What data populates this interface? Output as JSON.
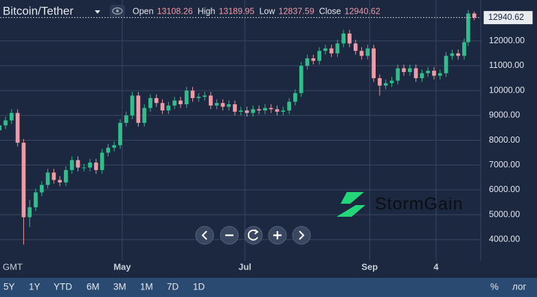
{
  "ui": {
    "symbol": "Bitcoin/Tether",
    "ohlc_labels": [
      "Open",
      "High",
      "Low",
      "Close"
    ],
    "timezone": "GMT",
    "brand": "StormGain",
    "ranges": [
      "5Y",
      "1Y",
      "YTD",
      "6M",
      "3M",
      "1M",
      "7D",
      "1D"
    ],
    "options": [
      "%",
      "лог"
    ]
  },
  "chart_data": {
    "type": "candlestick",
    "up_color": "#2fbf8c",
    "down_color": "#ef9aa6",
    "grid": true,
    "ylim": [
      3150,
      13650
    ],
    "yticks": [
      {
        "value": 4000,
        "label": "4000.00"
      },
      {
        "value": 5000,
        "label": "5000.00"
      },
      {
        "value": 6000,
        "label": "6000.00"
      },
      {
        "value": 7000,
        "label": "7000.00"
      },
      {
        "value": 8000,
        "label": "8000.00"
      },
      {
        "value": 9000,
        "label": "9000.00"
      },
      {
        "value": 10000,
        "label": "10000.00"
      },
      {
        "value": 11000,
        "label": "11000.00"
      },
      {
        "value": 12000,
        "label": "12000.00"
      }
    ],
    "xlim": [
      0.25,
      239.2
    ],
    "xticks": [
      {
        "value": 61,
        "label": "May"
      },
      {
        "value": 122,
        "label": "Jul"
      },
      {
        "value": 184,
        "label": "Sep"
      },
      {
        "value": 217,
        "label": "4"
      }
    ],
    "x": [
      0,
      3,
      6,
      9,
      12,
      15,
      18,
      21,
      24,
      27,
      30,
      33,
      36,
      39,
      42,
      45,
      48,
      51,
      54,
      57,
      60,
      63,
      66,
      69,
      72,
      75,
      78,
      81,
      84,
      87,
      90,
      93,
      96,
      99,
      102,
      105,
      108,
      111,
      114,
      117,
      120,
      123,
      126,
      129,
      132,
      135,
      138,
      141,
      144,
      147,
      150,
      153,
      156,
      159,
      162,
      165,
      168,
      171,
      174,
      177,
      180,
      183,
      186,
      189,
      192,
      195,
      198,
      201,
      204,
      207,
      210,
      213,
      216,
      219,
      222,
      225,
      228,
      231,
      233,
      236
    ],
    "open": [
      8400,
      8600,
      8800,
      9100,
      7900,
      4900,
      5300,
      5900,
      6200,
      6700,
      6400,
      6300,
      6800,
      7200,
      6900,
      6900,
      7100,
      6800,
      7500,
      7700,
      7800,
      8700,
      9000,
      9800,
      8700,
      9300,
      9700,
      9500,
      9200,
      9400,
      9600,
      9450,
      10000,
      9700,
      9750,
      9800,
      9400,
      9500,
      9350,
      9450,
      9150,
      9200,
      9100,
      9250,
      9200,
      9300,
      9250,
      9150,
      9200,
      9550,
      9900,
      11000,
      11300,
      11200,
      11600,
      11700,
      11500,
      11900,
      12300,
      11900,
      11600,
      11400,
      11700,
      10500,
      10200,
      10300,
      10400,
      10900,
      10750,
      10900,
      10500,
      10700,
      10800,
      10600,
      10700,
      11400,
      11500,
      11400,
      11950,
      13108.26
    ],
    "high": [
      8750,
      8950,
      9250,
      9250,
      8050,
      5600,
      6050,
      6350,
      6850,
      6850,
      6550,
      6950,
      7350,
      7350,
      7050,
      7250,
      7250,
      7650,
      7850,
      7950,
      8850,
      9150,
      9950,
      9950,
      9450,
      9850,
      9850,
      9650,
      9550,
      9750,
      9750,
      10150,
      10150,
      9900,
      9950,
      9950,
      9650,
      9650,
      9600,
      9600,
      9350,
      9350,
      9400,
      9400,
      9450,
      9450,
      9400,
      9350,
      9700,
      10050,
      11150,
      11450,
      11450,
      11750,
      11850,
      11850,
      12050,
      12450,
      12450,
      12050,
      11750,
      11850,
      11850,
      10650,
      10450,
      10550,
      11050,
      11050,
      11050,
      11050,
      10850,
      10950,
      10950,
      10850,
      11550,
      11650,
      11650,
      12100,
      13250,
      13189.95
    ],
    "low": [
      8250,
      8450,
      8650,
      7750,
      3800,
      4500,
      5150,
      5750,
      6050,
      6250,
      6150,
      6150,
      6650,
      6750,
      6750,
      6750,
      6650,
      6650,
      7350,
      7550,
      7650,
      8550,
      8850,
      8550,
      8550,
      9150,
      9350,
      9050,
      9050,
      9250,
      9300,
      9300,
      9550,
      9550,
      9600,
      9250,
      9250,
      9200,
      9200,
      9000,
      9000,
      8950,
      8950,
      9050,
      9050,
      9100,
      9000,
      9000,
      9050,
      9400,
      9750,
      10850,
      11050,
      11050,
      11450,
      11350,
      11350,
      11750,
      11750,
      11450,
      11250,
      11250,
      10350,
      9800,
      10050,
      10150,
      10250,
      10600,
      10600,
      10350,
      10350,
      10550,
      10450,
      10450,
      10550,
      11250,
      11250,
      11250,
      11800,
      12837.59
    ],
    "close": [
      8600,
      8800,
      9100,
      7900,
      4900,
      5300,
      5900,
      6200,
      6700,
      6400,
      6300,
      6800,
      7200,
      6900,
      6900,
      7100,
      6800,
      7500,
      7700,
      7800,
      8700,
      9000,
      9800,
      8700,
      9300,
      9700,
      9500,
      9200,
      9400,
      9600,
      9450,
      10000,
      9700,
      9750,
      9800,
      9400,
      9500,
      9350,
      9450,
      9150,
      9200,
      9100,
      9250,
      9200,
      9300,
      9250,
      9150,
      9200,
      9550,
      9900,
      11000,
      11300,
      11200,
      11600,
      11700,
      11500,
      11900,
      12300,
      11900,
      11600,
      11400,
      11700,
      10500,
      10200,
      10300,
      10400,
      10900,
      10750,
      10900,
      10500,
      10700,
      10800,
      10600,
      10700,
      11400,
      11500,
      11400,
      11950,
      13108.26,
      12940.62
    ]
  }
}
